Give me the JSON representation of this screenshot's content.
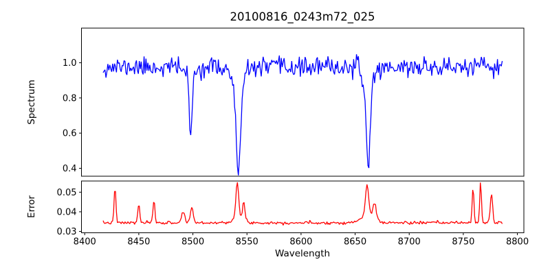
{
  "figure": {
    "background": "#ffffff",
    "spine_color": "#000000"
  },
  "chart_data": [
    {
      "type": "line",
      "title": "20100816_0243m72_025",
      "ylabel": "Spectrum",
      "xlabel": "",
      "legend": null,
      "grid": false,
      "line_color": "#0000ff",
      "xlim": [
        8397,
        8806
      ],
      "ylim": [
        0.355,
        1.197
      ],
      "yticks": [
        0.4,
        0.6,
        0.8,
        1.0
      ],
      "ytick_labels": [
        "0.4",
        "0.6",
        "0.8",
        "1.0"
      ],
      "x_start": 8417,
      "x_end": 8786,
      "n_points": 420,
      "continuum": 0.975,
      "noise_sigma": 0.027,
      "noise_seed": 11,
      "absorption_lines": [
        {
          "center": 8498,
          "depth": 0.3,
          "sigma": 1.3
        },
        {
          "center": 8498,
          "depth": 0.085,
          "sigma": 3.2
        },
        {
          "center": 8542,
          "depth": 0.45,
          "sigma": 2.0
        },
        {
          "center": 8542,
          "depth": 0.145,
          "sigma": 4.8
        },
        {
          "center": 8662,
          "depth": 0.41,
          "sigma": 1.8
        },
        {
          "center": 8662,
          "depth": 0.135,
          "sigma": 4.2
        }
      ],
      "line_minima": {
        "8498": 0.61,
        "8542": 0.39,
        "8662": 0.44
      }
    },
    {
      "type": "line",
      "title": "",
      "ylabel": "Error",
      "xlabel": "Wavelength",
      "legend": null,
      "grid": false,
      "line_color": "#ff0000",
      "xlim": [
        8397,
        8806
      ],
      "ylim": [
        0.0293,
        0.0557
      ],
      "yticks": [
        0.03,
        0.04,
        0.05
      ],
      "ytick_labels": [
        "0.03",
        "0.04",
        "0.05"
      ],
      "xticks": [
        8400,
        8450,
        8500,
        8550,
        8600,
        8650,
        8700,
        8750,
        8800
      ],
      "xtick_labels": [
        "8400",
        "8450",
        "8500",
        "8550",
        "8600",
        "8650",
        "8700",
        "8750",
        "8800"
      ],
      "x_start": 8417,
      "x_end": 8786,
      "n_points": 420,
      "baseline": 0.0344,
      "noise_sigma": 0.0004,
      "noise_seed": 7,
      "peaks": [
        {
          "center": 8428,
          "height": 0.0187,
          "sigma": 0.8
        },
        {
          "center": 8450,
          "height": 0.0095,
          "sigma": 0.9
        },
        {
          "center": 8464,
          "height": 0.011,
          "sigma": 0.9
        },
        {
          "center": 8491,
          "height": 0.0055,
          "sigma": 1.5
        },
        {
          "center": 8499,
          "height": 0.008,
          "sigma": 1.3
        },
        {
          "center": 8541,
          "height": 0.018,
          "sigma": 1.2
        },
        {
          "center": 8542,
          "height": 0.003,
          "sigma": 5.0
        },
        {
          "center": 8547,
          "height": 0.009,
          "sigma": 1.0
        },
        {
          "center": 8661,
          "height": 0.016,
          "sigma": 1.4
        },
        {
          "center": 8662,
          "height": 0.004,
          "sigma": 6.0
        },
        {
          "center": 8668,
          "height": 0.0075,
          "sigma": 1.5
        },
        {
          "center": 8759,
          "height": 0.0185,
          "sigma": 0.8
        },
        {
          "center": 8766,
          "height": 0.0205,
          "sigma": 0.8
        },
        {
          "center": 8776,
          "height": 0.0145,
          "sigma": 1.1
        }
      ]
    }
  ]
}
